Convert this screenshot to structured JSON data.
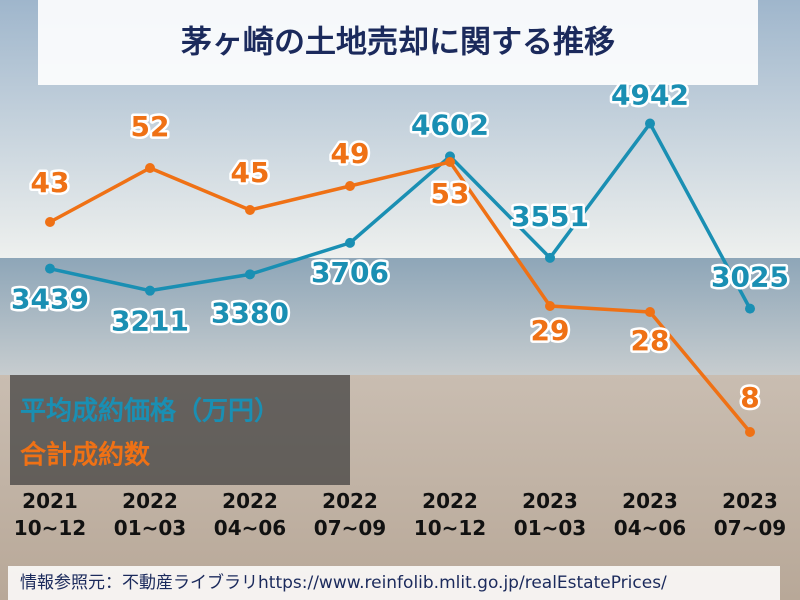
{
  "chart_data": {
    "type": "line",
    "title": "茅ヶ崎の土地売却に関する推移",
    "categories": [
      "2021\n10~12",
      "2022\n01~03",
      "2022\n04~06",
      "2022\n07~09",
      "2022\n10~12",
      "2023\n01~03",
      "2023\n04~06",
      "2023\n07~09"
    ],
    "series": [
      {
        "name": "平均成約価格（万円）",
        "color": "#1a8fb3",
        "values": [
          3439,
          3211,
          3380,
          3706,
          4602,
          3551,
          4942,
          3025
        ]
      },
      {
        "name": "合計成約数",
        "color": "#ef7115",
        "axis": "y2",
        "values": [
          43,
          52,
          45,
          49,
          53,
          29,
          28,
          8
        ]
      }
    ],
    "ylim": [
      1250,
      5600
    ],
    "y2lim": [
      0,
      70
    ],
    "source": "情報参照元：不動産ライブラリhttps://www.reinfolib.mlit.go.jp/realEstatePrices/"
  }
}
